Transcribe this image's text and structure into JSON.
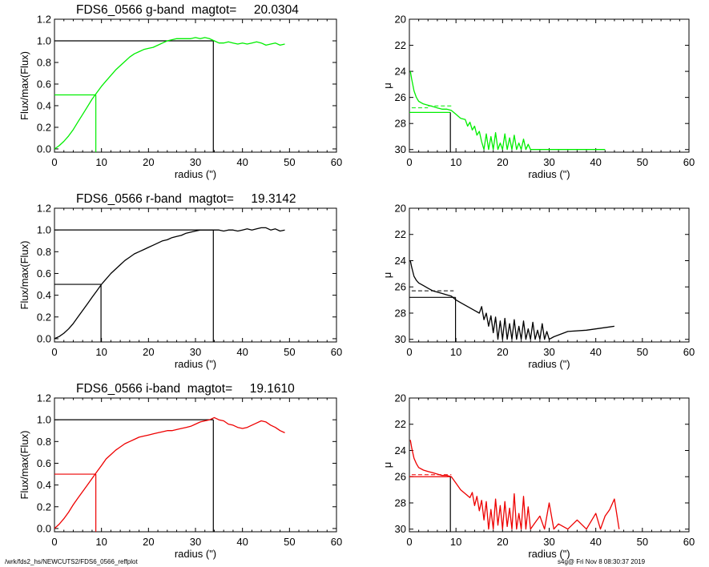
{
  "colors": {
    "g": "#00ee00",
    "r": "#000000",
    "i": "#ee0000",
    "axis": "#000000"
  },
  "footer": {
    "left": "/wrk/fds2_hs/NEWCUTS2/FDS6_0566_reffplot",
    "right": "s4g@  Fri Nov  8 08:30:37 2019"
  },
  "chart_data": [
    {
      "type": "line",
      "name": "growth-g",
      "band": "g",
      "title": "FDS6_0566 g-band  magtot=     20.0304",
      "xlabel": "radius (\")",
      "ylabel": "Flux/max(Flux)",
      "xlim": [
        0,
        60
      ],
      "ylim": [
        -0.03,
        1.2
      ],
      "xticks": [
        0,
        10,
        20,
        30,
        40,
        50,
        60
      ],
      "yticks": [
        0.0,
        0.2,
        0.4,
        0.6,
        0.8,
        1.0,
        1.2
      ],
      "ytick_labels": [
        "0.0",
        "0.2",
        "0.4",
        "0.6",
        "0.8",
        "1.0",
        "1.2"
      ],
      "series": [
        {
          "color": "g",
          "x": [
            0,
            1,
            2,
            3,
            4,
            5,
            6,
            7,
            8,
            9,
            10,
            11,
            12,
            13,
            14,
            15,
            16,
            17,
            18,
            19,
            20,
            21,
            22,
            23,
            24,
            25,
            26,
            27,
            28,
            29,
            30,
            31,
            32,
            33,
            34,
            35,
            36,
            37,
            38,
            39,
            40,
            41,
            42,
            43,
            44,
            45,
            46,
            47,
            48,
            49
          ],
          "y": [
            0.0,
            0.03,
            0.07,
            0.12,
            0.18,
            0.25,
            0.32,
            0.39,
            0.46,
            0.52,
            0.58,
            0.63,
            0.68,
            0.73,
            0.77,
            0.81,
            0.85,
            0.88,
            0.9,
            0.92,
            0.93,
            0.94,
            0.96,
            0.98,
            1.0,
            1.01,
            1.02,
            1.02,
            1.02,
            1.02,
            1.03,
            1.02,
            1.03,
            1.02,
            1.0,
            0.98,
            0.98,
            0.99,
            0.98,
            0.97,
            0.98,
            0.97,
            0.98,
            0.99,
            0.98,
            0.96,
            0.97,
            0.98,
            0.96,
            0.97
          ]
        }
      ],
      "ref_lines": [
        {
          "color": "g",
          "x": 8.8,
          "y": 0.5
        },
        {
          "color": "axis",
          "x": 33.8,
          "y": 1.0
        }
      ]
    },
    {
      "type": "line",
      "name": "profile-g",
      "band": "g",
      "xlabel": "radius (\")",
      "ylabel": "μ",
      "xlim": [
        0,
        60
      ],
      "ylim": [
        30.2,
        20
      ],
      "y_inverted": true,
      "xticks": [
        0,
        10,
        20,
        30,
        40,
        50,
        60
      ],
      "yticks": [
        20,
        22,
        24,
        26,
        28,
        30
      ],
      "series": [
        {
          "color": "g",
          "x": [
            0.2,
            0.5,
            1,
            1.5,
            2,
            3,
            4,
            5,
            6,
            7,
            8,
            9,
            10,
            11,
            12,
            12.5,
            13,
            13.5,
            14,
            14.5,
            15,
            15.5,
            16,
            16.5,
            17,
            17.5,
            18,
            18.5,
            19,
            19.5,
            20,
            20.5,
            21,
            21.5,
            22,
            22.5,
            23,
            23.5,
            24,
            24.5,
            25,
            25.5,
            26,
            30,
            42
          ],
          "y": [
            24.0,
            24.6,
            25.5,
            26.0,
            26.3,
            26.5,
            26.6,
            26.7,
            26.8,
            26.9,
            26.9,
            27.0,
            27.3,
            27.6,
            27.7,
            28.2,
            27.9,
            28.5,
            28.2,
            28.9,
            28.6,
            29.4,
            30.0,
            28.8,
            30.0,
            29.0,
            30.0,
            28.7,
            30.0,
            29.5,
            30.0,
            28.8,
            30.0,
            29.1,
            30.0,
            28.9,
            30.0,
            29.5,
            30.0,
            29.2,
            30.0,
            29.6,
            30.0,
            30.0,
            30.0
          ]
        }
      ],
      "dash_segments": [
        {
          "color": "g",
          "x": [
            0.5,
            4
          ],
          "y": 26.8
        },
        {
          "color": "g",
          "x": [
            4,
            9
          ],
          "y": 26.65
        }
      ],
      "ref_lines": [
        {
          "color": "g",
          "x": 8.8,
          "y": 27.15,
          "vcolor": "axis"
        }
      ]
    },
    {
      "type": "line",
      "name": "growth-r",
      "band": "r",
      "title": "FDS6_0566 r-band  magtot=     19.3142",
      "xlabel": "radius (\")",
      "ylabel": "Flux/max(Flux)",
      "xlim": [
        0,
        60
      ],
      "ylim": [
        -0.03,
        1.2
      ],
      "xticks": [
        0,
        10,
        20,
        30,
        40,
        50,
        60
      ],
      "yticks": [
        0.0,
        0.2,
        0.4,
        0.6,
        0.8,
        1.0,
        1.2
      ],
      "ytick_labels": [
        "0.0",
        "0.2",
        "0.4",
        "0.6",
        "0.8",
        "1.0",
        "1.2"
      ],
      "series": [
        {
          "color": "r",
          "x": [
            0,
            1,
            2,
            3,
            4,
            5,
            6,
            7,
            8,
            9,
            10,
            11,
            12,
            13,
            14,
            15,
            16,
            17,
            18,
            19,
            20,
            21,
            22,
            23,
            24,
            25,
            26,
            27,
            28,
            29,
            30,
            31,
            32,
            33,
            34,
            35,
            36,
            37,
            38,
            39,
            40,
            41,
            42,
            43,
            44,
            45,
            46,
            47,
            48,
            49
          ],
          "y": [
            0.0,
            0.02,
            0.05,
            0.09,
            0.14,
            0.2,
            0.26,
            0.32,
            0.38,
            0.44,
            0.5,
            0.55,
            0.6,
            0.64,
            0.68,
            0.72,
            0.75,
            0.78,
            0.8,
            0.82,
            0.84,
            0.86,
            0.88,
            0.9,
            0.91,
            0.93,
            0.94,
            0.95,
            0.97,
            0.98,
            0.99,
            1.0,
            1.0,
            1.0,
            1.0,
            1.0,
            0.99,
            1.0,
            1.0,
            0.99,
            1.0,
            1.01,
            1.0,
            1.01,
            1.02,
            1.02,
            1.0,
            1.01,
            0.99,
            1.0
          ]
        }
      ],
      "ref_lines": [
        {
          "color": "r",
          "x": 9.9,
          "y": 0.5
        },
        {
          "color": "axis",
          "x": 33.8,
          "y": 1.0
        }
      ]
    },
    {
      "type": "line",
      "name": "profile-r",
      "band": "r",
      "xlabel": "radius (\")",
      "ylabel": "μ",
      "xlim": [
        0,
        60
      ],
      "ylim": [
        30.2,
        20
      ],
      "y_inverted": true,
      "xticks": [
        0,
        10,
        20,
        30,
        40,
        50,
        60
      ],
      "yticks": [
        20,
        22,
        24,
        26,
        28,
        30
      ],
      "series": [
        {
          "color": "r",
          "x": [
            0.2,
            0.5,
            1,
            1.5,
            2,
            3,
            4,
            5,
            6,
            7,
            8,
            9,
            10,
            11,
            12,
            13,
            14,
            15,
            15.5,
            16,
            16.5,
            17,
            17.5,
            18,
            18.5,
            19,
            19.5,
            20,
            20.5,
            21,
            21.5,
            22,
            22.5,
            23,
            23.5,
            24,
            24.5,
            25,
            25.5,
            26,
            26.5,
            27,
            27.5,
            28,
            28.5,
            29,
            29.5,
            30,
            31,
            34,
            38,
            44
          ],
          "y": [
            24.0,
            24.5,
            25.2,
            25.5,
            25.7,
            25.9,
            26.1,
            26.3,
            26.4,
            26.5,
            26.6,
            26.7,
            27.0,
            27.2,
            27.4,
            27.6,
            27.8,
            28.0,
            27.5,
            28.5,
            28.0,
            29.0,
            28.2,
            29.5,
            28.3,
            30.0,
            28.6,
            30.0,
            28.4,
            30.0,
            28.8,
            30.0,
            28.5,
            30.0,
            29.0,
            30.0,
            28.6,
            30.0,
            29.2,
            30.0,
            28.7,
            30.0,
            29.3,
            30.0,
            28.8,
            30.0,
            29.4,
            30.0,
            29.8,
            29.4,
            29.3,
            29.0
          ]
        }
      ],
      "dash_segments": [
        {
          "color": "r",
          "x": [
            0.5,
            9.5
          ],
          "y": 26.3
        }
      ],
      "ref_lines": [
        {
          "color": "r",
          "x": 9.9,
          "y": 26.8,
          "vcolor": "axis"
        }
      ]
    },
    {
      "type": "line",
      "name": "growth-i",
      "band": "i",
      "title": "FDS6_0566 i-band  magtot=     19.1610",
      "xlabel": "radius (\")",
      "ylabel": "Flux/max(Flux)",
      "xlim": [
        0,
        60
      ],
      "ylim": [
        -0.03,
        1.2
      ],
      "xticks": [
        0,
        10,
        20,
        30,
        40,
        50,
        60
      ],
      "yticks": [
        0.0,
        0.2,
        0.4,
        0.6,
        0.8,
        1.0,
        1.2
      ],
      "ytick_labels": [
        "0.0",
        "0.2",
        "0.4",
        "0.6",
        "0.8",
        "1.0",
        "1.2"
      ],
      "series": [
        {
          "color": "i",
          "x": [
            0,
            1,
            2,
            3,
            4,
            5,
            6,
            7,
            8,
            9,
            10,
            11,
            12,
            13,
            14,
            15,
            16,
            17,
            18,
            19,
            20,
            21,
            22,
            23,
            24,
            25,
            26,
            27,
            28,
            29,
            30,
            31,
            32,
            33,
            34,
            35,
            36,
            37,
            38,
            39,
            40,
            41,
            42,
            43,
            44,
            45,
            46,
            47,
            48,
            49
          ],
          "y": [
            0.0,
            0.04,
            0.09,
            0.15,
            0.22,
            0.28,
            0.34,
            0.4,
            0.46,
            0.52,
            0.58,
            0.64,
            0.68,
            0.72,
            0.75,
            0.78,
            0.8,
            0.82,
            0.84,
            0.85,
            0.86,
            0.87,
            0.88,
            0.89,
            0.9,
            0.9,
            0.91,
            0.92,
            0.93,
            0.94,
            0.96,
            0.98,
            0.99,
            1.0,
            1.02,
            1.0,
            0.99,
            0.96,
            0.95,
            0.93,
            0.92,
            0.93,
            0.95,
            0.97,
            0.99,
            0.98,
            0.95,
            0.93,
            0.9,
            0.88
          ]
        }
      ],
      "ref_lines": [
        {
          "color": "i",
          "x": 8.8,
          "y": 0.5
        },
        {
          "color": "axis",
          "x": 33.8,
          "y": 1.0
        }
      ]
    },
    {
      "type": "line",
      "name": "profile-i",
      "band": "i",
      "xlabel": "radius (\")",
      "ylabel": "μ",
      "xlim": [
        0,
        60
      ],
      "ylim": [
        30.2,
        20
      ],
      "y_inverted": true,
      "xticks": [
        0,
        10,
        20,
        30,
        40,
        50,
        60
      ],
      "yticks": [
        20,
        22,
        24,
        26,
        28,
        30
      ],
      "series": [
        {
          "color": "i",
          "x": [
            0.2,
            0.5,
            1,
            1.5,
            2,
            3,
            4,
            5,
            6,
            7,
            8,
            9,
            10,
            11,
            12,
            13,
            13.5,
            14,
            14.5,
            15,
            15.5,
            16,
            16.5,
            17,
            17.5,
            18,
            18.5,
            19,
            19.5,
            20,
            20.5,
            21,
            21.5,
            22,
            22.5,
            23,
            23.5,
            24,
            24.5,
            25,
            25.5,
            26,
            27,
            28,
            29,
            30,
            31,
            32,
            34,
            36,
            38,
            40,
            41,
            42,
            43,
            44,
            45
          ],
          "y": [
            23.2,
            23.8,
            24.6,
            25.0,
            25.3,
            25.5,
            25.6,
            25.7,
            25.8,
            25.9,
            25.9,
            26.0,
            26.5,
            27.0,
            27.3,
            27.6,
            27.2,
            28.2,
            27.5,
            28.6,
            27.8,
            29.3,
            27.9,
            30.0,
            28.5,
            30.0,
            27.7,
            29.7,
            28.2,
            30.0,
            27.9,
            29.8,
            28.4,
            30.0,
            27.3,
            30.0,
            28.8,
            30.0,
            27.5,
            30.0,
            28.3,
            30.0,
            29.5,
            29.0,
            30.0,
            28.0,
            30.0,
            29.6,
            30.0,
            29.3,
            30.0,
            28.8,
            30.0,
            29.0,
            28.5,
            27.7,
            30.0
          ]
        }
      ],
      "dash_segments": [
        {
          "color": "i",
          "x": [
            0.5,
            9
          ],
          "y": 25.85
        }
      ],
      "ref_lines": [
        {
          "color": "i",
          "x": 8.8,
          "y": 26.0,
          "vcolor": "axis"
        }
      ]
    }
  ]
}
